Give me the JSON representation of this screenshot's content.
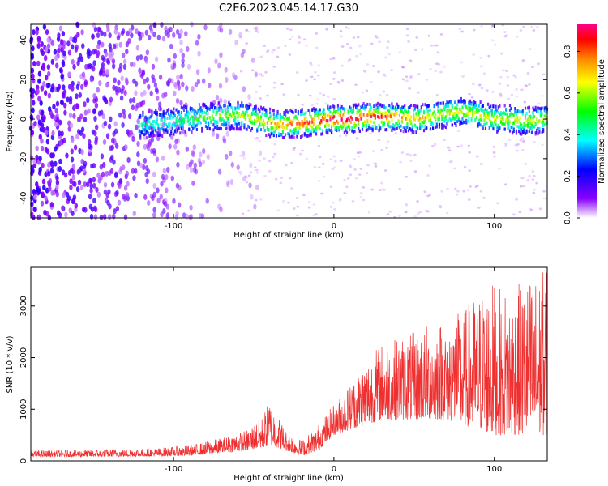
{
  "title": "C2E6.2023.045.14.17.G30",
  "colors": {
    "snr_line": "#ee3030",
    "axis": "#000000"
  },
  "chart_data": [
    {
      "type": "heatmap",
      "xlabel": "Height of straight line (km)",
      "ylabel": "Frequency (Hz)",
      "xlim": [
        -189,
        133
      ],
      "ylim": [
        -50,
        48
      ],
      "xticks": [
        -100,
        0,
        100
      ],
      "yticks": [
        -40,
        -20,
        0,
        20,
        40
      ],
      "colorbar": {
        "label": "Normalized spectral amplitude",
        "range": [
          0,
          0.93
        ],
        "ticks": [
          0.0,
          0.2,
          0.4,
          0.6,
          0.8
        ],
        "colormap": [
          "#ffffff",
          "#8800ff",
          "#0000ff",
          "#00ffff",
          "#00ff00",
          "#ffff00",
          "#ff8800",
          "#ff0000",
          "#ff0088"
        ]
      },
      "ridge": {
        "x": [
          -120,
          -100,
          -80,
          -60,
          -45,
          -35,
          -20,
          -10,
          0,
          10,
          20,
          30,
          40,
          50,
          60,
          70,
          80,
          90,
          100,
          110,
          120,
          133
        ],
        "y": [
          -3,
          -1,
          1,
          2,
          -1,
          -3,
          -2,
          -1,
          0,
          0,
          1,
          1,
          1,
          0,
          1,
          3,
          4,
          2,
          0,
          0,
          -1,
          0
        ]
      },
      "grid": false
    },
    {
      "type": "line",
      "xlabel": "Height of straight line (km)",
      "ylabel": "SNR (10 * v/v)",
      "xlim": [
        -189,
        133
      ],
      "ylim": [
        0,
        3750
      ],
      "xticks": [
        -100,
        0,
        100
      ],
      "yticks": [
        0,
        1000,
        2000,
        3000
      ],
      "envelope": {
        "x": [
          -189,
          -150,
          -110,
          -90,
          -70,
          -55,
          -45,
          -40,
          -30,
          -20,
          -10,
          0,
          10,
          20,
          30,
          40,
          50,
          60,
          70,
          80,
          90,
          100,
          110,
          120,
          130,
          133
        ],
        "lower": [
          80,
          80,
          90,
          100,
          150,
          200,
          250,
          300,
          200,
          100,
          200,
          500,
          600,
          700,
          800,
          800,
          800,
          800,
          800,
          700,
          600,
          500,
          500,
          500,
          500,
          500
        ],
        "upper": [
          200,
          220,
          250,
          300,
          450,
          600,
          850,
          1200,
          600,
          400,
          700,
          1100,
          1500,
          2000,
          2300,
          2400,
          2500,
          2700,
          2800,
          2900,
          3300,
          3500,
          3300,
          3550,
          3700,
          3700
        ]
      },
      "grid": false
    }
  ]
}
